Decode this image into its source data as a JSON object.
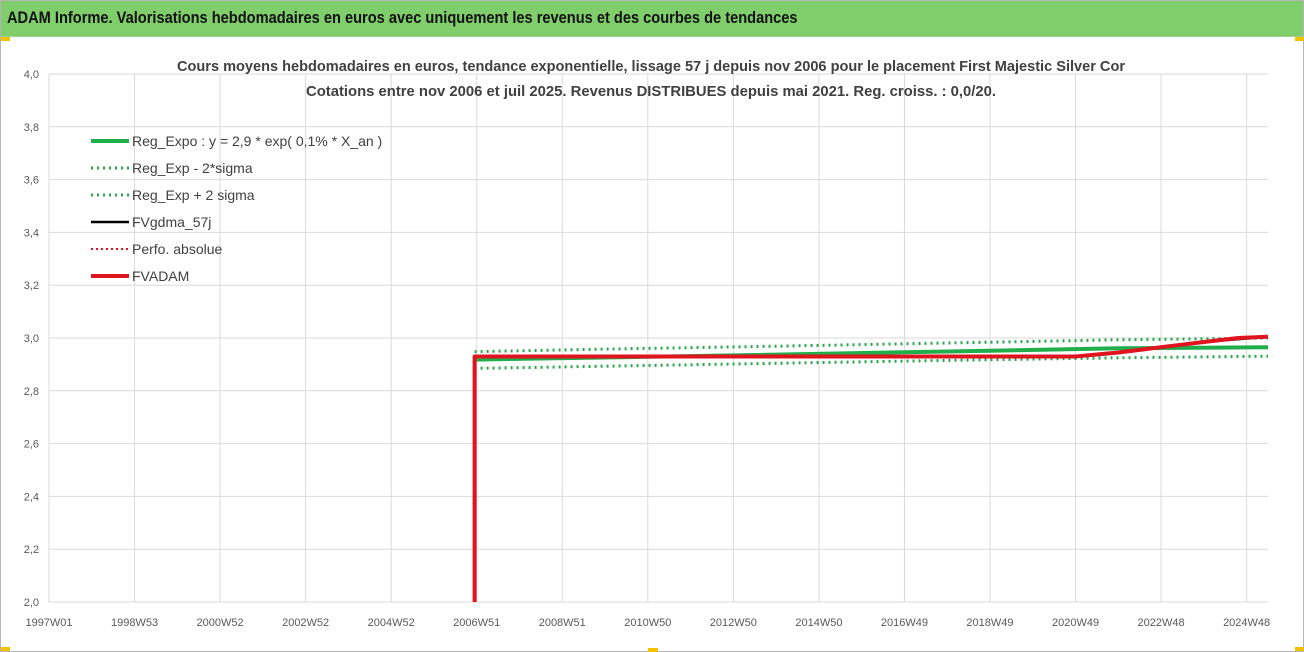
{
  "header": {
    "title": "ADAM Informe. Valorisations hebdomadaires en euros avec uniquement les revenus et des courbes de tendances"
  },
  "colors": {
    "header_bg": "#7fcd6b",
    "reg_green": "#1fae4b",
    "sigma_green": "#27a84a",
    "gdma_black": "#000000",
    "adam_red": "#e0141e",
    "perfo_red": "#e0141e",
    "grid": "#d9d9d9",
    "corner_accent": "#f2c200"
  },
  "chart_data": {
    "type": "line",
    "title_lines": [
      "Cours moyens hebdomadaires en euros, tendance exponentielle, lissage 57 j depuis nov 2006 pour le placement First Majestic Silver Cor",
      "Cotations entre nov 2006 et juil 2025. Revenus DISTRIBUES depuis mai 2021. Reg. croiss. : 0,0/20."
    ],
    "xlabel": "",
    "ylabel": "",
    "x_ticks": [
      "1997W01",
      "1998W53",
      "2000W52",
      "2002W52",
      "2004W52",
      "2006W51",
      "2008W51",
      "2010W50",
      "2012W50",
      "2014W50",
      "2016W49",
      "2018W49",
      "2020W49",
      "2022W48",
      "2024W48"
    ],
    "x_tick_years": [
      1997.0,
      1999.0,
      2001.0,
      2003.0,
      2005.0,
      2007.0,
      2009.0,
      2011.0,
      2013.0,
      2015.0,
      2017.0,
      2019.0,
      2021.0,
      2023.0,
      2025.0
    ],
    "xlim": [
      1997.0,
      2025.5
    ],
    "y_ticks": [
      "2,0",
      "2,2",
      "2,4",
      "2,6",
      "2,8",
      "3,0",
      "3,2",
      "3,4",
      "3,6",
      "3,8",
      "4,0"
    ],
    "ylim": [
      2.0,
      4.0
    ],
    "grid": true,
    "legend_position": "top-left",
    "legend": [
      {
        "label": "Reg_Expo : y = 2,9 * exp( 0,1% *  X_an )",
        "style": "solid-thick",
        "color": "#1fae4b"
      },
      {
        "label": "Reg_Exp - 2*sigma",
        "style": "dotted",
        "color": "#27a84a"
      },
      {
        "label": "Reg_Exp + 2 sigma",
        "style": "dotted",
        "color": "#27a84a"
      },
      {
        "label": "FVgdma_57j",
        "style": "solid",
        "color": "#000000"
      },
      {
        "label": "Perfo. absolue",
        "style": "dotted",
        "color": "#e0141e"
      },
      {
        "label": "FVADAM",
        "style": "solid-thick",
        "color": "#e0141e"
      }
    ],
    "series": [
      {
        "name": "Reg_Expo : y = 2,9 * exp( 0,1% *  X_an )",
        "x": [
          2006.95,
          2010.0,
          2014.0,
          2018.0,
          2022.0,
          2025.5
        ],
        "y": [
          2.918,
          2.926,
          2.937,
          2.949,
          2.961,
          2.965
        ]
      },
      {
        "name": "Reg_Exp - 2*sigma",
        "x": [
          2006.95,
          2010.0,
          2014.0,
          2018.0,
          2022.0,
          2025.5
        ],
        "y": [
          2.885,
          2.893,
          2.904,
          2.915,
          2.925,
          2.931
        ]
      },
      {
        "name": "Reg_Exp + 2 sigma",
        "x": [
          2006.95,
          2010.0,
          2014.0,
          2018.0,
          2022.0,
          2025.5
        ],
        "y": [
          2.948,
          2.958,
          2.969,
          2.981,
          2.993,
          3.0
        ]
      },
      {
        "name": "FVgdma_57j",
        "x": [
          2006.95,
          2010.0,
          2014.0,
          2018.0,
          2021.0,
          2022.0,
          2023.0,
          2024.0,
          2025.5
        ],
        "y": [
          2.928,
          2.928,
          2.928,
          2.929,
          2.93,
          2.945,
          2.965,
          2.985,
          3.005
        ]
      },
      {
        "name": "Perfo. absolue",
        "x": [
          2006.95,
          2010.0,
          2014.0,
          2018.0,
          2021.0,
          2022.0,
          2023.0,
          2024.0,
          2025.5
        ],
        "y": [
          2.928,
          2.928,
          2.928,
          2.929,
          2.93,
          2.945,
          2.965,
          2.985,
          3.005
        ]
      },
      {
        "name": "FVADAM",
        "x": [
          2006.95,
          2006.95,
          2010.0,
          2014.0,
          2018.0,
          2021.0,
          2022.0,
          2023.0,
          2024.0,
          2024.8,
          2025.5
        ],
        "y": [
          2.0,
          2.93,
          2.93,
          2.93,
          2.93,
          2.93,
          2.945,
          2.965,
          2.985,
          3.0,
          3.005
        ]
      }
    ]
  }
}
